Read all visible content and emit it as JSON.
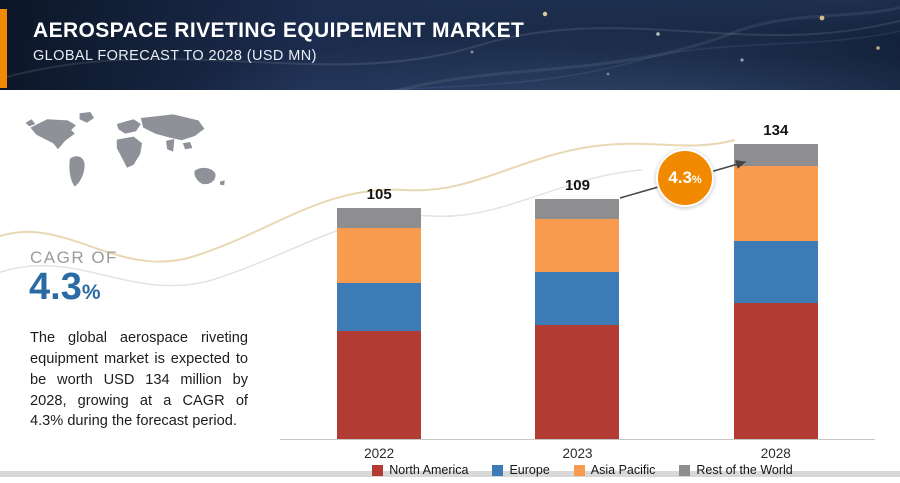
{
  "header": {
    "title": "AEROSPACE RIVETING EQUIPEMENT MARKET",
    "subtitle": "GLOBAL FORECAST TO 2028 (USD MN)"
  },
  "sidebar": {
    "cagr_label": "CAGR OF",
    "cagr_value": "4.3",
    "cagr_unit": "%",
    "description": "The global aerospace riveting equipment market is expected to be worth USD 134 million by 2028, growing at a CAGR of 4.3% during the forecast period."
  },
  "chart_data": {
    "type": "bar",
    "stacked": true,
    "title": "Aerospace Riveting Equipment Market, Global Forecast (USD MN)",
    "categories": [
      "2022",
      "2023",
      "2028"
    ],
    "totals": [
      105,
      109,
      134
    ],
    "series": [
      {
        "name": "North America",
        "color": "#b23b34",
        "values": [
          49,
          52,
          62
        ]
      },
      {
        "name": "Europe",
        "color": "#3d7bb6",
        "values": [
          22,
          24,
          28
        ]
      },
      {
        "name": "Asia Pacific",
        "color": "#f89b4e",
        "values": [
          25,
          24,
          34
        ]
      },
      {
        "name": "Rest of the World",
        "color": "#8e8e90",
        "values": [
          9,
          9,
          10
        ]
      }
    ],
    "ylim": [
      0,
      140
    ],
    "grid": false,
    "legend_position": "bottom",
    "growth_badge": {
      "value": "4.3",
      "unit": "%"
    }
  },
  "colors": {
    "header_bg": "#17253f",
    "accent_orange": "#f18a00",
    "cagr_blue": "#2a6ba6",
    "map_gray": "#8e9298"
  }
}
